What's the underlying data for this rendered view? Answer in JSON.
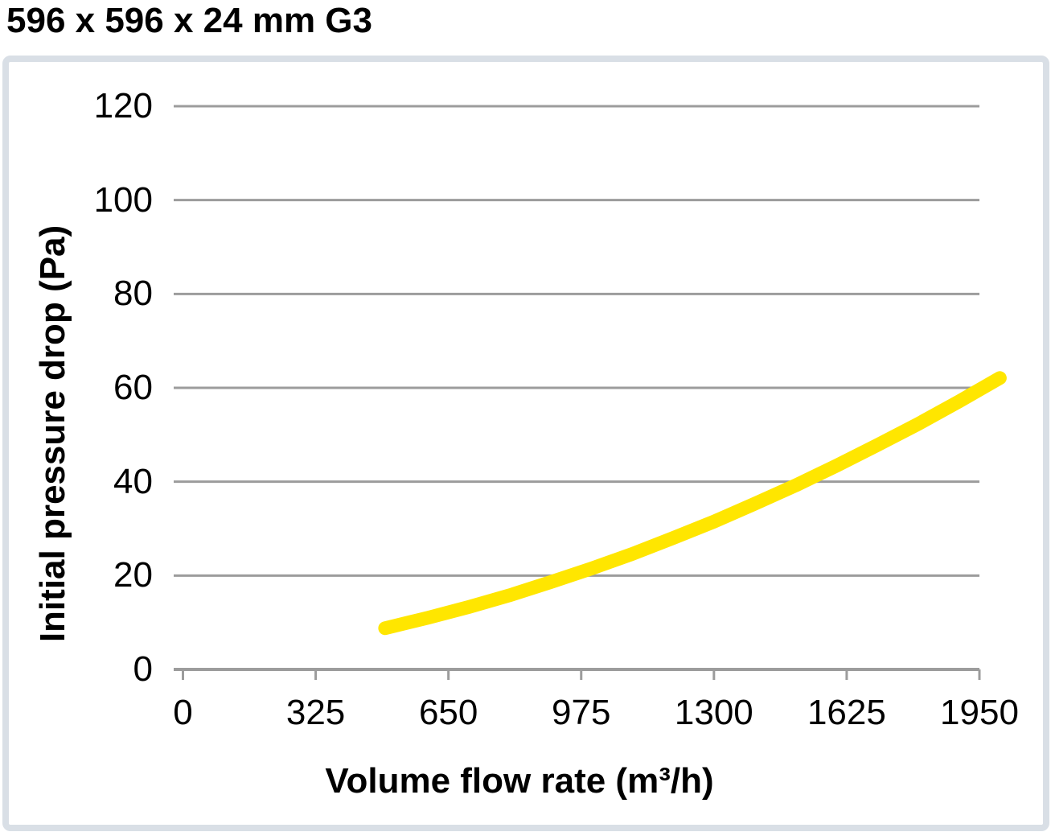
{
  "chart_data": {
    "type": "line",
    "title": "596 x 596 x 24 mm G3",
    "xlabel": "Volume flow rate (m³/h)",
    "ylabel": "Initial pressure drop (Pa)",
    "x_ticks": [
      0,
      325,
      650,
      975,
      1300,
      1625,
      1950
    ],
    "y_ticks": [
      0,
      20,
      40,
      60,
      80,
      100,
      120
    ],
    "xlim": [
      0,
      1950
    ],
    "ylim": [
      0,
      120
    ],
    "grid": "horizontal-only",
    "legend": "none",
    "series": [
      {
        "color": "#ffe600",
        "points": [
          [
            495,
            8.8
          ],
          [
            600,
            11.0
          ],
          [
            700,
            13.3
          ],
          [
            800,
            15.8
          ],
          [
            900,
            18.6
          ],
          [
            1000,
            21.5
          ],
          [
            1100,
            24.6
          ],
          [
            1200,
            28.0
          ],
          [
            1300,
            31.5
          ],
          [
            1400,
            35.3
          ],
          [
            1500,
            39.2
          ],
          [
            1600,
            43.4
          ],
          [
            1700,
            47.8
          ],
          [
            1800,
            52.3
          ],
          [
            1900,
            57.1
          ],
          [
            2000,
            62.1
          ]
        ]
      }
    ],
    "colors": {
      "curve": "#ffe600",
      "gridline": "#9c9c9c",
      "axis": "#9c9c9c",
      "frame_border": "#d9dfe6",
      "text": "#000000"
    }
  }
}
